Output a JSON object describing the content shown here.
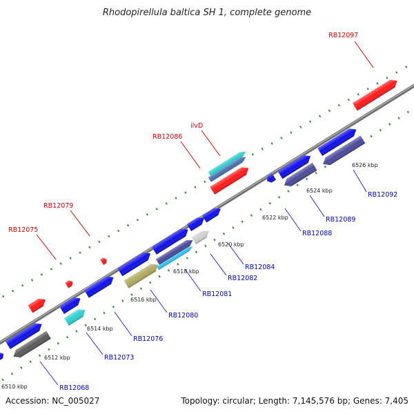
{
  "title": "Rhodopirellula baltica SH 1, complete genome",
  "footer": {
    "accession": "Accession: NC_005027",
    "summary": "Topology: circular; Length: 7,145,576 bp; Genes: 7,405"
  },
  "colors": {
    "backbone": "#8c8c8c",
    "tick": "#2e8b2e",
    "forward_label": "#d40000",
    "reverse_label": "#0000c0",
    "leader": "#2a2ad0",
    "leader_forward": "#d40000"
  },
  "kbp_ticks": [
    "6510 kbp",
    "6512 kbp",
    "6514 kbp",
    "6516 kbp",
    "6518 kbp",
    "6520 kbp",
    "6522 kbp",
    "6524 kbp",
    "6526 kbp"
  ],
  "labels": [
    {
      "text": "RB12097",
      "strand": "forward"
    },
    {
      "text": "ilvD",
      "strand": "forward"
    },
    {
      "text": "RB12086",
      "strand": "forward"
    },
    {
      "text": "RB12079",
      "strand": "forward"
    },
    {
      "text": "RB12075",
      "strand": "forward"
    },
    {
      "text": "RB12092",
      "strand": "reverse"
    },
    {
      "text": "RB12089",
      "strand": "reverse"
    },
    {
      "text": "RB12088",
      "strand": "reverse"
    },
    {
      "text": "RB12084",
      "strand": "reverse"
    },
    {
      "text": "RB12082",
      "strand": "reverse"
    },
    {
      "text": "RB12081",
      "strand": "reverse"
    },
    {
      "text": "RB12080",
      "strand": "reverse"
    },
    {
      "text": "RB12076",
      "strand": "reverse"
    },
    {
      "text": "RB12073",
      "strand": "reverse"
    },
    {
      "text": "RB12068",
      "strand": "reverse"
    }
  ]
}
